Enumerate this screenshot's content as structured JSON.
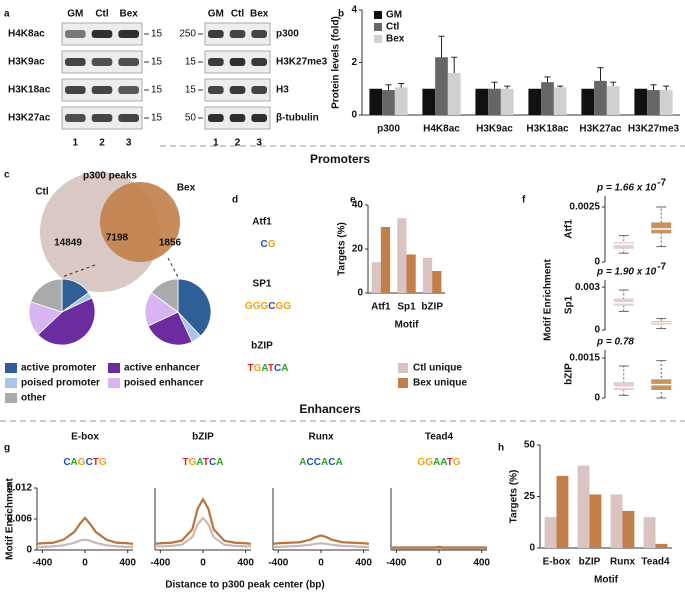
{
  "panel_labels": [
    "a",
    "b",
    "c",
    "d",
    "e",
    "f",
    "g",
    "h"
  ],
  "sections": [
    "Promoters",
    "Enhancers"
  ],
  "blots": [
    {
      "columns": [
        "GM",
        "Ctl",
        "Bex"
      ],
      "rows": [
        "H4K8ac",
        "H3K9ac",
        "H3K18ac",
        "H3K27ac"
      ],
      "markers": [
        15,
        15,
        15,
        15
      ],
      "lanes": [
        1,
        2,
        3
      ]
    },
    {
      "columns": [
        "GM",
        "Ctl",
        "Bex"
      ],
      "rows": [
        "p300",
        "H3K27me3",
        "H3",
        "β-tubulin"
      ],
      "markers": [
        250,
        15,
        15,
        50
      ],
      "lanes": [
        1,
        2,
        3
      ]
    }
  ],
  "venn": {
    "title": "p300 peaks",
    "sets": [
      "Ctl",
      "Bex"
    ],
    "counts": [
      14849,
      7198,
      1856
    ]
  },
  "motifs_d": [
    {
      "name": "Atf1",
      "logo": "CG"
    },
    {
      "name": "SP1",
      "logo": "GGGCGG"
    },
    {
      "name": "bZIP",
      "logo": "TGATCA"
    }
  ],
  "chart_data": [
    {
      "type": "bar",
      "ylabel": "Protein levels (fold)",
      "categories": [
        "p300",
        "H4K8ac",
        "H3K9ac",
        "H3K18ac",
        "H3K27ac",
        "H3K27me3"
      ],
      "series": [
        {
          "name": "GM",
          "color": "#111111",
          "values": [
            1,
            1,
            1,
            1,
            1,
            1
          ]
        },
        {
          "name": "Ctl",
          "color": "#666666",
          "values": [
            0.95,
            2.2,
            1.0,
            1.25,
            1.3,
            0.95
          ],
          "errors": [
            0.2,
            0.8,
            0.25,
            0.2,
            0.5,
            0.2
          ]
        },
        {
          "name": "Bex",
          "color": "#d0d0d0",
          "values": [
            1.05,
            1.6,
            1.0,
            1.05,
            1.1,
            0.95
          ],
          "errors": [
            0.15,
            0.6,
            0.1,
            0.05,
            0.15,
            0.15
          ]
        }
      ],
      "ylim": [
        0,
        4
      ],
      "yticks": [
        0,
        2,
        4
      ],
      "legend": "top-left"
    },
    {
      "type": "pie",
      "categories": [
        "active promoter",
        "poised promoter",
        "active enhancer",
        "poised enhancer",
        "other"
      ],
      "colors": [
        "#2f5f97",
        "#a9c5e3",
        "#6a2c9e",
        "#d8b4f2",
        "#aaaaaa"
      ],
      "values": [
        15,
        3,
        45,
        17,
        20
      ]
    },
    {
      "type": "pie",
      "categories": [
        "active promoter",
        "poised promoter",
        "active enhancer",
        "poised enhancer",
        "other"
      ],
      "colors": [
        "#2f5f97",
        "#a9c5e3",
        "#6a2c9e",
        "#d8b4f2",
        "#aaaaaa"
      ],
      "values": [
        38,
        5,
        25,
        17,
        15
      ]
    },
    {
      "type": "bar",
      "ylabel": "Targets (%)",
      "xlabel": "Motif",
      "categories": [
        "Atf1",
        "Sp1",
        "bZIP"
      ],
      "series": [
        {
          "name": "Ctl unique",
          "color": "#d9c4c2",
          "values": [
            14,
            34,
            16
          ]
        },
        {
          "name": "Bex unique",
          "color": "#c27f4a",
          "values": [
            30,
            17.5,
            10
          ]
        }
      ],
      "ylim": [
        0,
        40
      ],
      "yticks": [
        0,
        20,
        40
      ],
      "legend": "bottom"
    },
    {
      "type": "box",
      "label": "Atf1",
      "ylabel": "Motif Enrichment",
      "p_text": "p = 1.66 x 10",
      "p_exponent": "-7",
      "ylim": [
        0,
        0.003
      ],
      "yticks": [
        0,
        0.0025
      ],
      "boxes": [
        {
          "color": "#e3cfcc",
          "low": 0.0004,
          "q1": 0.0006,
          "median": 0.0008,
          "q3": 0.0009,
          "high": 0.0012
        },
        {
          "color": "#c9935f",
          "low": 0.0007,
          "q1": 0.0013,
          "median": 0.0015,
          "q3": 0.0018,
          "high": 0.0025
        }
      ]
    },
    {
      "type": "box",
      "label": "Sp1",
      "p_text": "p = 1.90 x 10",
      "p_exponent": "-7",
      "ylim": [
        0,
        0.0035
      ],
      "yticks": [
        0,
        0.003
      ],
      "boxes": [
        {
          "color": "#e3cfcc",
          "low": 0.0013,
          "q1": 0.0017,
          "median": 0.0019,
          "q3": 0.0022,
          "high": 0.0028
        },
        {
          "color": "#c9935f",
          "low": 0.0001,
          "q1": 0.0004,
          "median": 0.0005,
          "q3": 0.0006,
          "high": 0.0008
        }
      ]
    },
    {
      "type": "box",
      "label": "bZIP",
      "p_text": "p = 0.78",
      "ylim": [
        0,
        0.0018
      ],
      "yticks": [
        0,
        0.0015
      ],
      "boxes": [
        {
          "color": "#e3cfcc",
          "low": 0.0001,
          "q1": 0.0003,
          "median": 0.0004,
          "q3": 0.0006,
          "high": 0.0012
        },
        {
          "color": "#c9935f",
          "low": 0,
          "q1": 0.0003,
          "median": 0.0005,
          "q3": 0.0007,
          "high": 0.0014
        }
      ]
    },
    {
      "type": "line",
      "title": "E-box",
      "logo": "CAGCTG",
      "ylabel": "Motif Enrichment",
      "xlabel": "Distance to p300 peak center (bp)",
      "x": [
        -450,
        -400,
        -300,
        -200,
        -100,
        -50,
        0,
        50,
        100,
        200,
        300,
        400,
        450
      ],
      "xlim": [
        -450,
        450
      ],
      "xticks": [
        -400,
        0,
        400
      ],
      "ylim": [
        0,
        0.012
      ],
      "yticks": [
        0,
        0.006,
        0.012
      ],
      "series": [
        {
          "color": "#cbb8b6",
          "values": [
            0.0006,
            0.0006,
            0.0007,
            0.0009,
            0.0014,
            0.0018,
            0.002,
            0.0018,
            0.0014,
            0.0009,
            0.0007,
            0.0006,
            0.0006
          ]
        },
        {
          "color": "#b8753f",
          "values": [
            0.0012,
            0.0013,
            0.0014,
            0.002,
            0.0035,
            0.005,
            0.0062,
            0.005,
            0.0035,
            0.002,
            0.0014,
            0.0013,
            0.0012
          ]
        }
      ]
    },
    {
      "type": "line",
      "title": "bZIP",
      "logo": "TGATCA",
      "x": [
        -450,
        -400,
        -300,
        -200,
        -100,
        -50,
        0,
        50,
        100,
        200,
        300,
        400,
        450
      ],
      "xlim": [
        -450,
        450
      ],
      "xticks": [
        -400,
        0,
        400
      ],
      "ylim": [
        0,
        0.012
      ],
      "series": [
        {
          "color": "#cbb8b6",
          "values": [
            0.0007,
            0.0007,
            0.0008,
            0.001,
            0.0025,
            0.005,
            0.0062,
            0.005,
            0.0025,
            0.001,
            0.0008,
            0.0007,
            0.0007
          ]
        },
        {
          "color": "#b8753f",
          "values": [
            0.0012,
            0.0013,
            0.0014,
            0.0018,
            0.004,
            0.008,
            0.0098,
            0.008,
            0.004,
            0.0018,
            0.0014,
            0.0013,
            0.0012
          ]
        }
      ]
    },
    {
      "type": "line",
      "title": "Runx",
      "logo": "ACCACA",
      "x": [
        -450,
        -400,
        -300,
        -200,
        -100,
        -50,
        0,
        50,
        100,
        200,
        300,
        400,
        450
      ],
      "xlim": [
        -450,
        450
      ],
      "xticks": [
        -400,
        0,
        400
      ],
      "ylim": [
        0,
        0.012
      ],
      "series": [
        {
          "color": "#cbb8b6",
          "values": [
            0.0006,
            0.0006,
            0.0007,
            0.0008,
            0.001,
            0.0012,
            0.0013,
            0.0012,
            0.001,
            0.0008,
            0.0007,
            0.0006,
            0.0006
          ]
        },
        {
          "color": "#b8753f",
          "values": [
            0.0012,
            0.0013,
            0.0014,
            0.0015,
            0.002,
            0.0025,
            0.0028,
            0.0025,
            0.002,
            0.0015,
            0.0014,
            0.0013,
            0.0012
          ]
        }
      ]
    },
    {
      "type": "line",
      "title": "Tead4",
      "logo": "GGAATG",
      "x": [
        -450,
        -400,
        -300,
        -200,
        -100,
        -50,
        0,
        50,
        100,
        200,
        300,
        400,
        450
      ],
      "xlim": [
        -450,
        450
      ],
      "xticks": [
        -400,
        0,
        400
      ],
      "ylim": [
        0,
        0.012
      ],
      "series": [
        {
          "color": "#cbb8b6",
          "values": [
            0.0003,
            0.0003,
            0.0003,
            0.0003,
            0.0003,
            0.0003,
            0.0003,
            0.0003,
            0.0003,
            0.0003,
            0.0003,
            0.0003,
            0.0003
          ]
        },
        {
          "color": "#b8753f",
          "values": [
            0.0005,
            0.0005,
            0.0005,
            0.0005,
            0.0005,
            0.0005,
            0.0006,
            0.0005,
            0.0005,
            0.0005,
            0.0005,
            0.0005,
            0.0005
          ]
        }
      ]
    },
    {
      "type": "bar",
      "ylabel": "Targets (%)",
      "xlabel": "Motif",
      "categories": [
        "E-box",
        "bZIP",
        "Runx",
        "Tead4"
      ],
      "series": [
        {
          "color": "#d9c4c2",
          "values": [
            15,
            40,
            26,
            15
          ]
        },
        {
          "color": "#c27f4a",
          "values": [
            35,
            26,
            18,
            2
          ]
        }
      ],
      "ylim": [
        0,
        50
      ],
      "yticks": [
        0,
        25,
        50
      ]
    }
  ]
}
